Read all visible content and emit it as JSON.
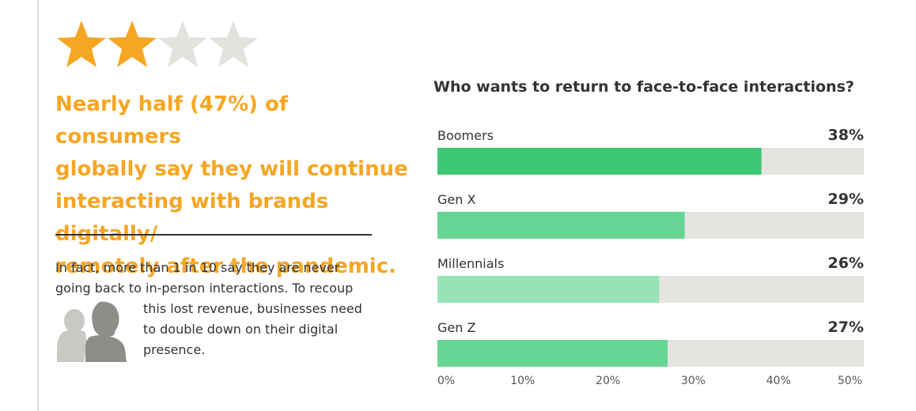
{
  "rating": {
    "filled": 2,
    "total": 4,
    "filled_color": "#f6a623",
    "empty_color": "#e3e2df"
  },
  "headline": {
    "lines": [
      "Nearly half (47%) of consumers",
      "globally say they will continue",
      "interacting with brands digitally/",
      "remotely after the pandemic."
    ],
    "color": "#f6a623"
  },
  "body_text": {
    "lines": [
      "In fact, more than 1 in 10 say they are never",
      "going back to in-person interactions. To recoup",
      "this lost revenue, businesses need",
      "to double down on their digital",
      "presence."
    ]
  },
  "icons": {
    "people": "people-silhouette-icon",
    "star": "star-icon"
  },
  "chart_data": {
    "type": "bar",
    "orientation": "horizontal",
    "title": "Who wants to return to face-to-face interactions?",
    "categories": [
      "Boomers",
      "Gen X",
      "Millennials",
      "Gen Z"
    ],
    "values": [
      38,
      29,
      26,
      27
    ],
    "value_labels": [
      "38%",
      "29%",
      "26%",
      "27%"
    ],
    "bar_colors": [
      "#3ec874",
      "#66d593",
      "#98e3b6",
      "#66d593"
    ],
    "track_color": "#e5e4e1",
    "xlim": [
      0,
      50
    ],
    "ticks": [
      "0%",
      "10%",
      "20%",
      "30%",
      "40%",
      "50%"
    ],
    "grid": false
  }
}
